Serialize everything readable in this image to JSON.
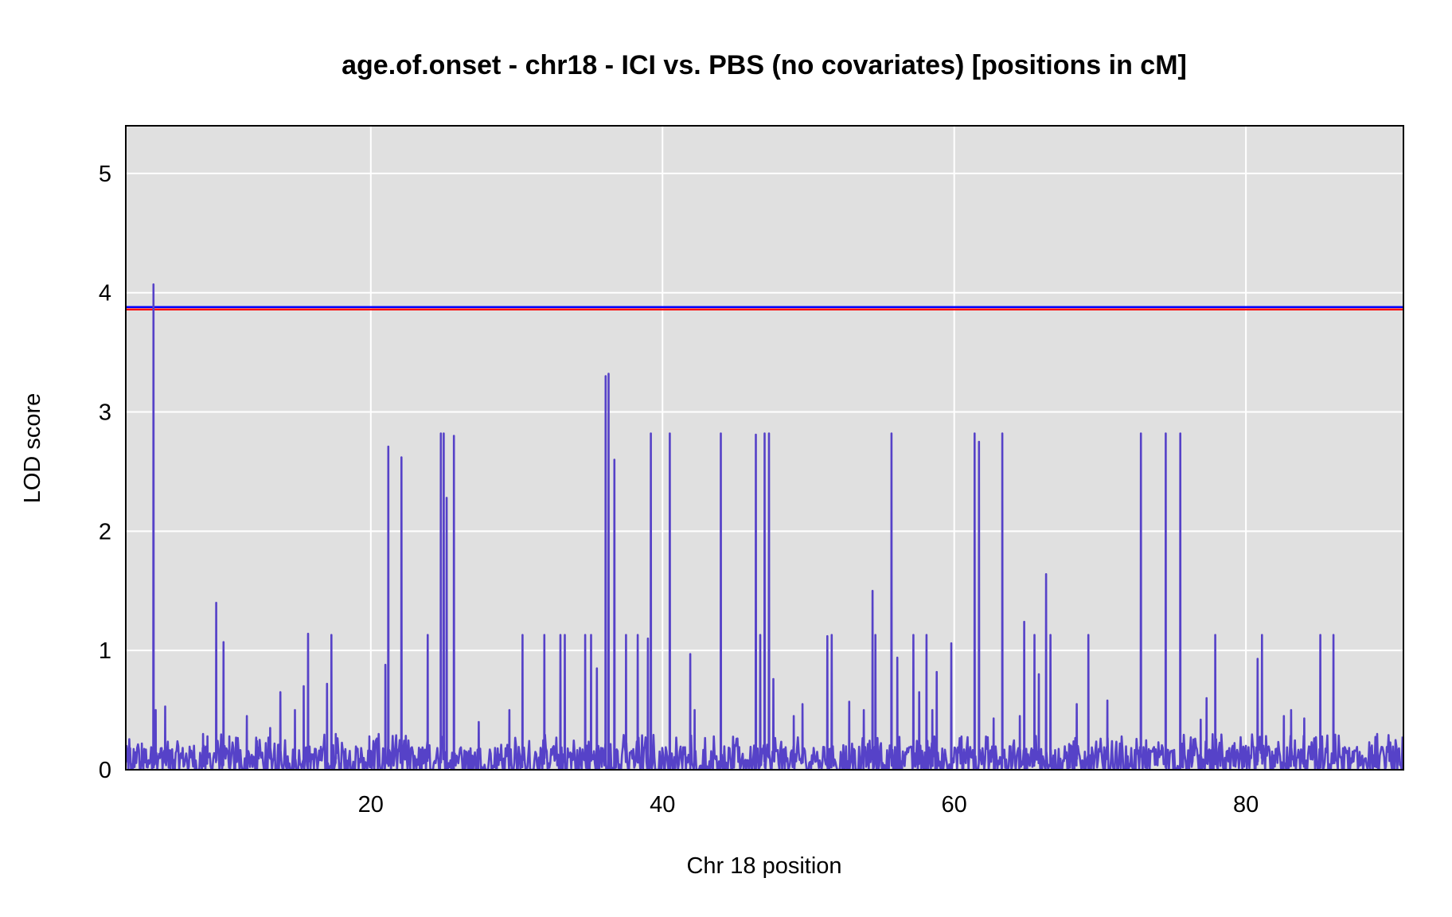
{
  "chart_data": {
    "type": "line",
    "title": "age.of.onset - chr18 - ICI vs. PBS (no covariates) [positions in cM]",
    "xlabel": "Chr 18 position",
    "ylabel": "LOD score",
    "xlim": [
      3.2,
      90.8
    ],
    "ylim": [
      0,
      5.4
    ],
    "x_ticks": [
      20,
      40,
      60,
      80
    ],
    "y_ticks": [
      0,
      1,
      2,
      3,
      4,
      5
    ],
    "grid": true,
    "background": "#e0e0e0",
    "thresholds": [
      {
        "value": 3.86,
        "color": "#ff0000"
      },
      {
        "value": 3.88,
        "color": "#0000ff"
      }
    ],
    "series": [
      {
        "color": "#5642c8",
        "peaks": [
          {
            "x": 3.5,
            "y": 0.18
          },
          {
            "x": 4.3,
            "y": 0.22
          },
          {
            "x": 5.1,
            "y": 4.07
          },
          {
            "x": 5.25,
            "y": 0.5
          },
          {
            "x": 5.9,
            "y": 0.53
          },
          {
            "x": 8.5,
            "y": 0.3
          },
          {
            "x": 8.8,
            "y": 0.28
          },
          {
            "x": 9.4,
            "y": 1.4
          },
          {
            "x": 9.9,
            "y": 1.07
          },
          {
            "x": 10.3,
            "y": 0.28
          },
          {
            "x": 11.5,
            "y": 0.45
          },
          {
            "x": 12.2,
            "y": 0.24
          },
          {
            "x": 13.1,
            "y": 0.35
          },
          {
            "x": 13.8,
            "y": 0.65
          },
          {
            "x": 14.8,
            "y": 0.5
          },
          {
            "x": 15.4,
            "y": 0.7
          },
          {
            "x": 15.7,
            "y": 1.14
          },
          {
            "x": 17.0,
            "y": 0.72
          },
          {
            "x": 17.3,
            "y": 1.13
          },
          {
            "x": 17.6,
            "y": 0.3
          },
          {
            "x": 19.9,
            "y": 0.28
          },
          {
            "x": 21.0,
            "y": 0.88
          },
          {
            "x": 21.2,
            "y": 2.71
          },
          {
            "x": 22.1,
            "y": 2.62
          },
          {
            "x": 23.6,
            "y": 0.12
          },
          {
            "x": 23.9,
            "y": 1.13
          },
          {
            "x": 24.8,
            "y": 2.82
          },
          {
            "x": 25.0,
            "y": 2.82
          },
          {
            "x": 25.2,
            "y": 2.28
          },
          {
            "x": 25.7,
            "y": 2.8
          },
          {
            "x": 27.4,
            "y": 0.4
          },
          {
            "x": 29.5,
            "y": 0.5
          },
          {
            "x": 30.4,
            "y": 1.13
          },
          {
            "x": 31.9,
            "y": 1.13
          },
          {
            "x": 33.0,
            "y": 1.13
          },
          {
            "x": 33.3,
            "y": 1.13
          },
          {
            "x": 34.7,
            "y": 1.13
          },
          {
            "x": 35.1,
            "y": 1.13
          },
          {
            "x": 35.5,
            "y": 0.85
          },
          {
            "x": 36.1,
            "y": 3.3
          },
          {
            "x": 36.3,
            "y": 3.32
          },
          {
            "x": 36.7,
            "y": 2.6
          },
          {
            "x": 37.5,
            "y": 1.13
          },
          {
            "x": 38.3,
            "y": 1.13
          },
          {
            "x": 39.0,
            "y": 1.1
          },
          {
            "x": 39.2,
            "y": 2.82
          },
          {
            "x": 40.5,
            "y": 2.82
          },
          {
            "x": 41.9,
            "y": 0.97
          },
          {
            "x": 42.2,
            "y": 0.5
          },
          {
            "x": 44.0,
            "y": 2.82
          },
          {
            "x": 46.4,
            "y": 2.81
          },
          {
            "x": 46.7,
            "y": 1.13
          },
          {
            "x": 47.0,
            "y": 2.82
          },
          {
            "x": 47.3,
            "y": 2.82
          },
          {
            "x": 47.6,
            "y": 0.76
          },
          {
            "x": 49.0,
            "y": 0.45
          },
          {
            "x": 49.6,
            "y": 0.55
          },
          {
            "x": 51.3,
            "y": 1.12
          },
          {
            "x": 51.6,
            "y": 1.13
          },
          {
            "x": 52.8,
            "y": 0.57
          },
          {
            "x": 53.8,
            "y": 0.5
          },
          {
            "x": 54.4,
            "y": 1.5
          },
          {
            "x": 54.6,
            "y": 1.13
          },
          {
            "x": 55.7,
            "y": 2.82
          },
          {
            "x": 56.1,
            "y": 0.94
          },
          {
            "x": 57.2,
            "y": 1.13
          },
          {
            "x": 57.6,
            "y": 0.65
          },
          {
            "x": 58.1,
            "y": 1.13
          },
          {
            "x": 58.5,
            "y": 0.5
          },
          {
            "x": 58.8,
            "y": 0.82
          },
          {
            "x": 59.8,
            "y": 1.06
          },
          {
            "x": 61.4,
            "y": 2.82
          },
          {
            "x": 61.7,
            "y": 2.75
          },
          {
            "x": 62.7,
            "y": 0.43
          },
          {
            "x": 63.3,
            "y": 2.82
          },
          {
            "x": 64.5,
            "y": 0.45
          },
          {
            "x": 64.8,
            "y": 1.24
          },
          {
            "x": 65.5,
            "y": 1.13
          },
          {
            "x": 65.8,
            "y": 0.8
          },
          {
            "x": 66.3,
            "y": 1.64
          },
          {
            "x": 66.6,
            "y": 1.13
          },
          {
            "x": 68.4,
            "y": 0.55
          },
          {
            "x": 69.2,
            "y": 1.13
          },
          {
            "x": 70.5,
            "y": 0.58
          },
          {
            "x": 72.8,
            "y": 2.82
          },
          {
            "x": 74.5,
            "y": 2.82
          },
          {
            "x": 75.5,
            "y": 2.82
          },
          {
            "x": 76.9,
            "y": 0.42
          },
          {
            "x": 77.3,
            "y": 0.6
          },
          {
            "x": 77.9,
            "y": 1.13
          },
          {
            "x": 80.8,
            "y": 0.93
          },
          {
            "x": 81.1,
            "y": 1.13
          },
          {
            "x": 82.6,
            "y": 0.45
          },
          {
            "x": 83.1,
            "y": 0.5
          },
          {
            "x": 84.0,
            "y": 0.43
          },
          {
            "x": 85.1,
            "y": 1.13
          },
          {
            "x": 86.0,
            "y": 1.13
          },
          {
            "x": 89.0,
            "y": 0.3
          }
        ]
      }
    ]
  }
}
